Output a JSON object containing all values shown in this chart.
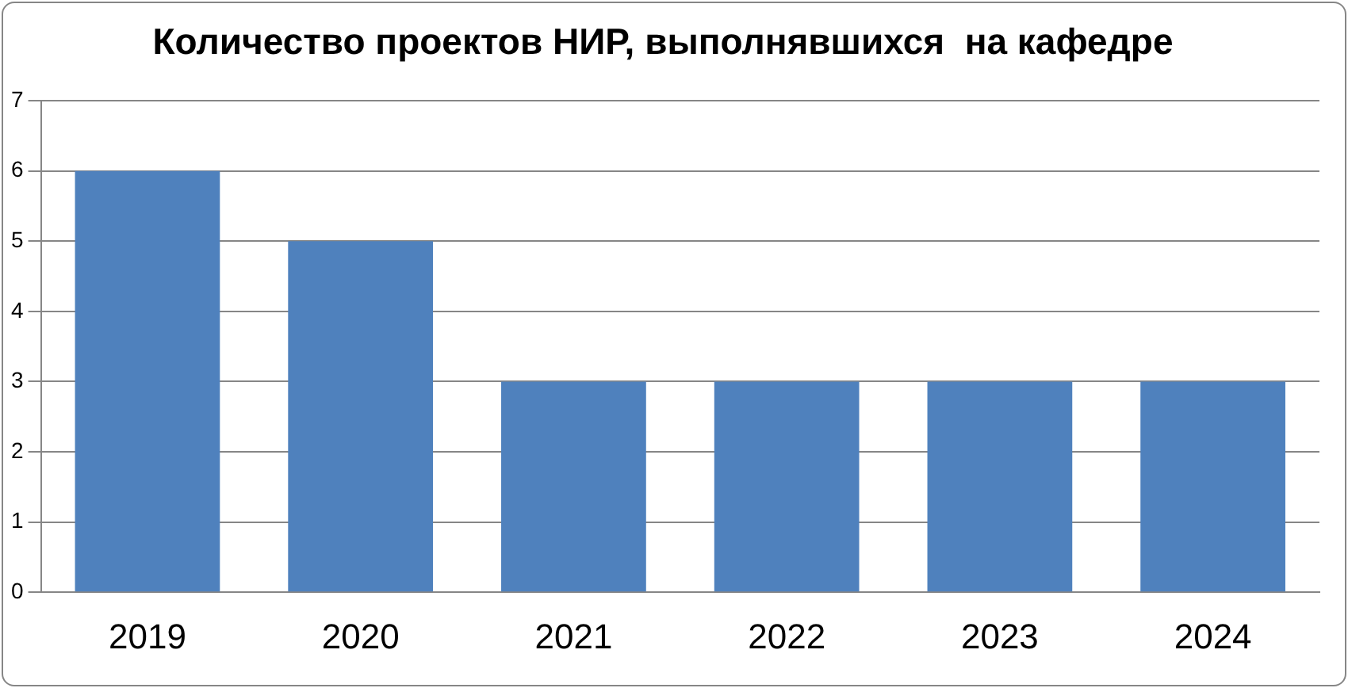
{
  "chart_data": {
    "type": "bar",
    "title": "Количество проектов НИР, выполнявшихся  на кафедре",
    "categories": [
      "2019",
      "2020",
      "2021",
      "2022",
      "2023",
      "2024"
    ],
    "values": [
      6,
      5,
      3,
      3,
      3,
      3
    ],
    "color": "#4f81bd",
    "ylim": [
      0,
      7
    ],
    "yticks": [
      0,
      1,
      2,
      3,
      4,
      5,
      6,
      7
    ],
    "grid": "y"
  }
}
